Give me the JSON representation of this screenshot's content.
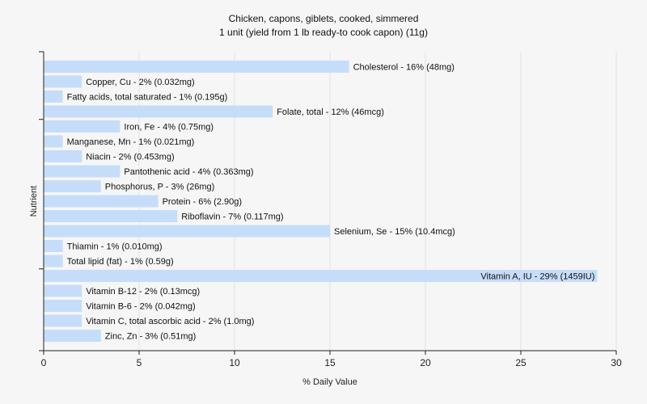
{
  "chart_data": {
    "type": "bar",
    "orientation": "horizontal",
    "title": "Chicken, capons, giblets, cooked, simmered",
    "subtitle": "1 unit (yield from 1 lb ready-to cook capon) (11g)",
    "xlabel": "% Daily Value",
    "ylabel": "Nutrient",
    "xlim": [
      0,
      30
    ],
    "xticks": [
      0,
      5,
      10,
      15,
      20,
      25,
      30
    ],
    "grid": true,
    "bar_color": "#c6ddfa",
    "categories": [
      "Cholesterol",
      "Copper, Cu",
      "Fatty acids, total saturated",
      "Folate, total",
      "Iron, Fe",
      "Manganese, Mn",
      "Niacin",
      "Pantothenic acid",
      "Phosphorus, P",
      "Protein",
      "Riboflavin",
      "Selenium, Se",
      "Thiamin",
      "Total lipid (fat)",
      "Vitamin A, IU",
      "Vitamin B-12",
      "Vitamin B-6",
      "Vitamin C, total ascorbic acid",
      "Zinc, Zn"
    ],
    "values": [
      16,
      2,
      1,
      12,
      4,
      1,
      2,
      4,
      3,
      6,
      7,
      15,
      1,
      1,
      29,
      2,
      2,
      2,
      3
    ],
    "labels": [
      "Cholesterol - 16% (48mg)",
      "Copper, Cu - 2% (0.032mg)",
      "Fatty acids, total saturated - 1% (0.195g)",
      "Folate, total - 12% (46mcg)",
      "Iron, Fe - 4% (0.75mg)",
      "Manganese, Mn - 1% (0.021mg)",
      "Niacin - 2% (0.453mg)",
      "Pantothenic acid - 4% (0.363mg)",
      "Phosphorus, P - 3% (26mg)",
      "Protein - 6% (2.90g)",
      "Riboflavin - 7% (0.117mg)",
      "Selenium, Se - 15% (10.4mcg)",
      "Thiamin - 1% (0.010mg)",
      "Total lipid (fat) - 1% (0.59g)",
      "Vitamin A, IU - 29% (1459IU)",
      "Vitamin B-12 - 2% (0.13mcg)",
      "Vitamin B-6 - 2% (0.042mg)",
      "Vitamin C, total ascorbic acid - 2% (1.0mg)",
      "Zinc, Zn - 3% (0.51mg)"
    ]
  }
}
